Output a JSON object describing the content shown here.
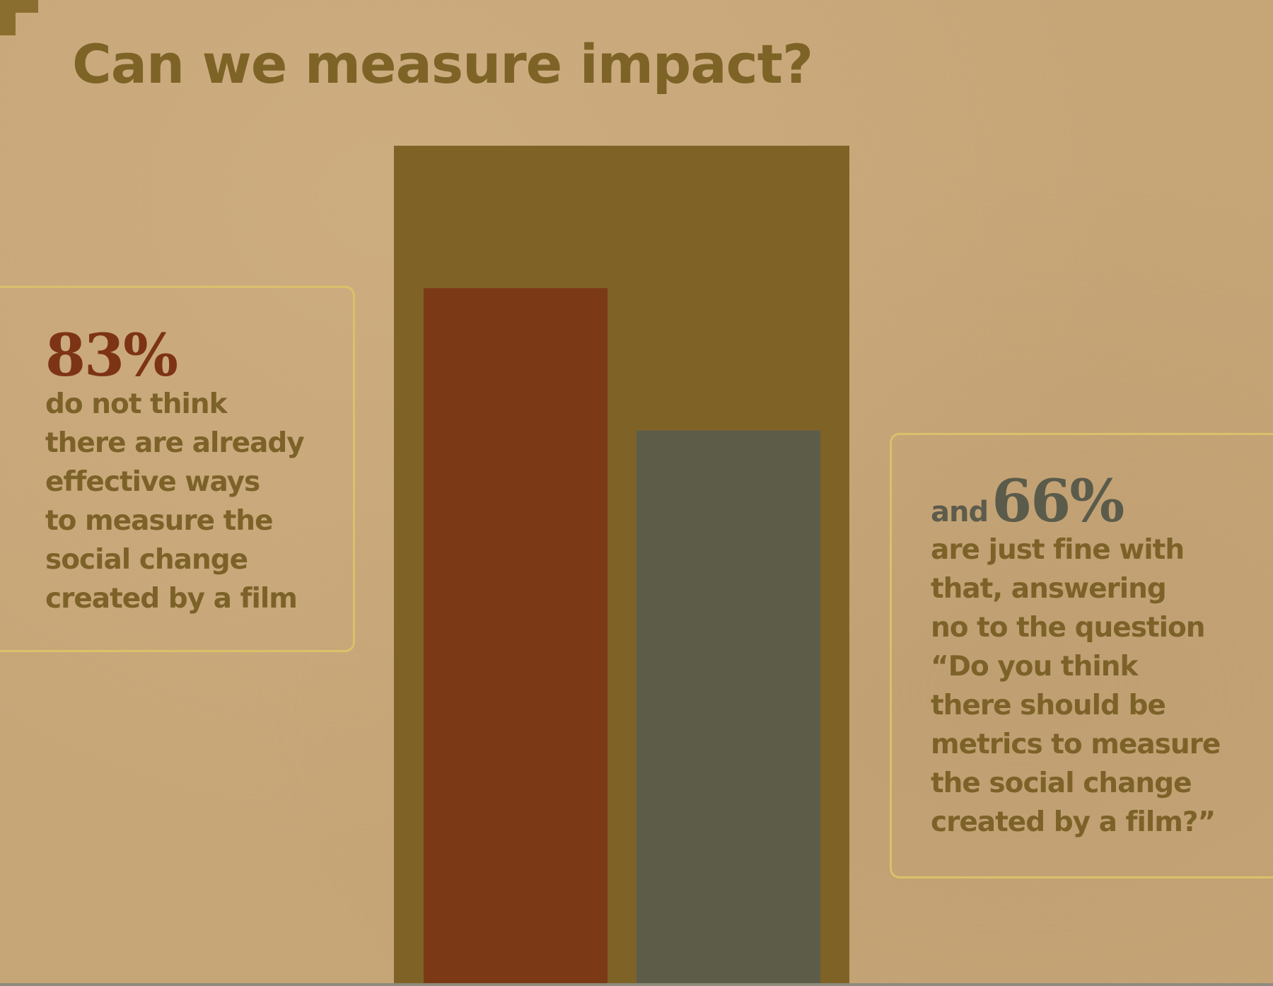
{
  "title": "Can we measure impact?",
  "colors": {
    "background": "#c6a577",
    "frame": "#7f6226",
    "bar_83": "#7b3a15",
    "bar_66": "#5c5c49",
    "callout_border": "#dcc06a",
    "text": "#7c6228"
  },
  "left_callout": {
    "percent": "83%",
    "lines": [
      "do not think",
      "there are already",
      "effective ways",
      "to measure the",
      "social change",
      "created by a film"
    ]
  },
  "right_callout": {
    "prefix": "and",
    "percent": "66%",
    "lines": [
      "are just fine with",
      "that, answering",
      "no to the question",
      "“Do you think",
      "there should be",
      "metrics to measure",
      "the social change",
      "created by a film?”"
    ]
  },
  "chart_data": {
    "type": "bar",
    "title": "Can we measure impact?",
    "xlabel": "",
    "ylabel": "",
    "ylim": [
      0,
      100
    ],
    "grid": false,
    "legend": "none",
    "frame_value": 100,
    "series": [
      {
        "value": 83,
        "color": "#7b3a15"
      },
      {
        "value": 66,
        "color": "#5c5c49"
      }
    ]
  }
}
